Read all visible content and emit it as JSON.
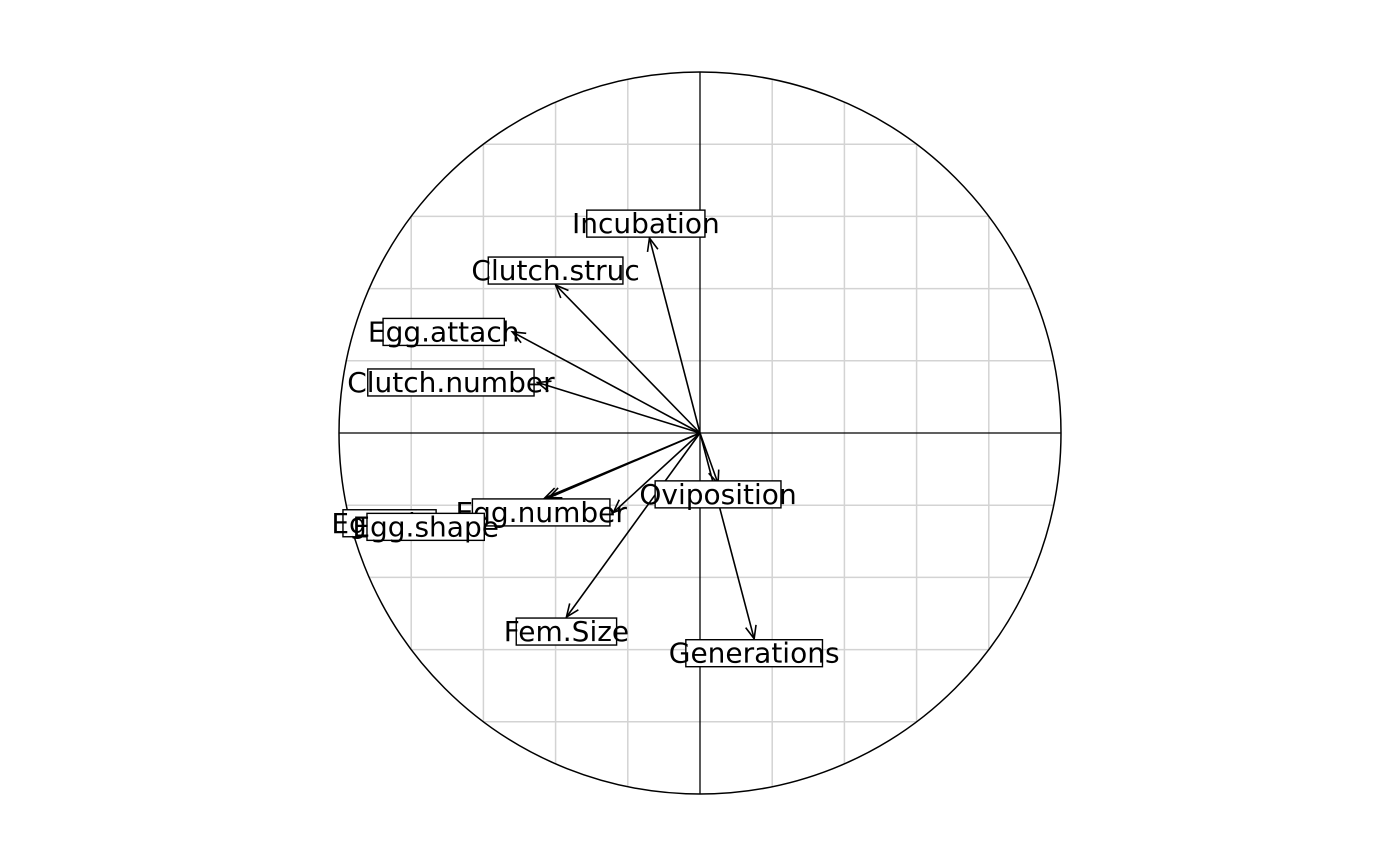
{
  "chart_data": {
    "type": "scatter",
    "subtype": "correlation-circle",
    "title": "",
    "xlabel": "",
    "ylabel": "",
    "xlim": [
      -1,
      1
    ],
    "ylim": [
      -1,
      1
    ],
    "grid": true,
    "grid_step": 0.2,
    "unit_circle": true,
    "axes_through_origin": true,
    "variables": [
      {
        "name": "Incubation",
        "arrow": [
          -0.14,
          0.54
        ],
        "label": [
          -0.15,
          0.58
        ]
      },
      {
        "name": "Clutch.struc",
        "arrow": [
          -0.4,
          0.41
        ],
        "label": [
          -0.4,
          0.45
        ]
      },
      {
        "name": "Egg.attach",
        "arrow": [
          -0.52,
          0.28
        ],
        "label": [
          -0.71,
          0.28
        ]
      },
      {
        "name": "Clutch.number",
        "arrow": [
          -0.45,
          0.14
        ],
        "label": [
          -0.69,
          0.14
        ]
      },
      {
        "name": "Oviposition",
        "arrow": [
          0.05,
          -0.14
        ],
        "label": [
          0.05,
          -0.17
        ]
      },
      {
        "name": "Egg.number",
        "arrow": [
          -0.24,
          -0.22
        ],
        "label": [
          -0.44,
          -0.22
        ]
      },
      {
        "name": "Egg.size",
        "arrow": [
          -0.42,
          -0.18
        ],
        "label": [
          -0.86,
          -0.25
        ]
      },
      {
        "name": "Egg.shape",
        "arrow": [
          -0.43,
          -0.18
        ],
        "label": [
          -0.76,
          -0.26
        ]
      },
      {
        "name": "Fem.Size",
        "arrow": [
          -0.37,
          -0.51
        ],
        "label": [
          -0.37,
          -0.55
        ]
      },
      {
        "name": "Generations",
        "arrow": [
          0.15,
          -0.57
        ],
        "label": [
          0.15,
          -0.61
        ]
      }
    ]
  }
}
